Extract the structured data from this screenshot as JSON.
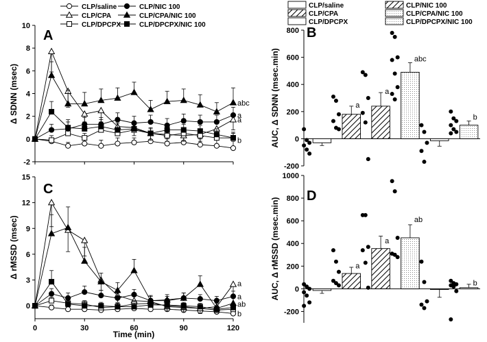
{
  "chart_data": [
    {
      "panel": "A",
      "type": "line",
      "title": "",
      "xlabel": "",
      "ylabel": "Δ SDNN (msec)",
      "xlim": [
        0,
        120
      ],
      "ylim": [
        -2,
        10
      ],
      "xticks": [
        0,
        30,
        60,
        90,
        120
      ],
      "yticks": [
        -2,
        0,
        2,
        4,
        6,
        8,
        10
      ],
      "x": [
        0,
        10,
        20,
        30,
        40,
        50,
        60,
        70,
        80,
        90,
        100,
        110,
        120
      ],
      "series": [
        {
          "name": "CLP/saline",
          "marker": "circle-open",
          "values": [
            0,
            -0.2,
            -0.6,
            -0.4,
            -0.6,
            -0.4,
            -0.3,
            -0.2,
            -0.4,
            -0.3,
            -0.5,
            -0.6,
            -0.8
          ],
          "err": [
            0,
            0.3,
            0.3,
            0.4,
            0.5,
            0.5,
            0.4,
            0.5,
            0.4,
            0.4,
            0.5,
            0.5,
            0.6
          ]
        },
        {
          "name": "CLP/CPA",
          "marker": "triangle-open",
          "values": [
            0,
            7.7,
            4.2,
            2.2,
            2.5,
            1.1,
            1.0,
            0.5,
            0.4,
            0.3,
            0.4,
            0.9,
            1.7
          ],
          "err": [
            0,
            1.8,
            1.4,
            0.9,
            1.0,
            0.8,
            0.7,
            0.6,
            0.6,
            0.5,
            0.6,
            0.7,
            0.9
          ]
        },
        {
          "name": "CLP/DPCPX",
          "marker": "square-open",
          "values": [
            0,
            -0.1,
            0.5,
            0.1,
            0.8,
            0.5,
            0.8,
            0.5,
            0.3,
            0.5,
            0.3,
            0.1,
            0.1
          ],
          "err": [
            0,
            0.4,
            0.5,
            0.4,
            0.5,
            0.5,
            0.5,
            0.4,
            0.4,
            0.5,
            0.4,
            0.4,
            0.4
          ]
        },
        {
          "name": "CLP/NIC 100",
          "marker": "circle-filled",
          "values": [
            0,
            0.8,
            0.9,
            1.3,
            1.3,
            1.7,
            1.4,
            1.5,
            1.2,
            1.6,
            1.5,
            1.5,
            2.1
          ],
          "err": [
            0,
            0.5,
            0.6,
            0.6,
            0.6,
            0.6,
            0.6,
            0.6,
            0.6,
            0.6,
            0.6,
            0.6,
            0.7
          ]
        },
        {
          "name": "CLP/CPA/NIC 100",
          "marker": "triangle-filled",
          "values": [
            0,
            5.6,
            3.1,
            3.1,
            3.4,
            3.6,
            4.1,
            2.6,
            3.3,
            3.4,
            3.0,
            2.4,
            3.2
          ],
          "err": [
            0,
            1.2,
            1.2,
            1.0,
            1.0,
            0.9,
            0.9,
            0.8,
            0.9,
            1.0,
            0.9,
            0.8,
            1.3
          ]
        },
        {
          "name": "CLP/DPCPX/NIC 100",
          "marker": "square-filled",
          "values": [
            0,
            2.4,
            1.0,
            0.9,
            1.1,
            0.8,
            0.9,
            0.5,
            0.8,
            0.8,
            0.7,
            0.4,
            0.1
          ],
          "err": [
            0,
            0.9,
            0.7,
            0.6,
            0.6,
            0.6,
            0.5,
            0.5,
            0.5,
            0.5,
            0.5,
            0.5,
            0.5
          ]
        }
      ],
      "annotations": [
        "abc",
        "a",
        "a",
        "b"
      ]
    },
    {
      "panel": "B",
      "type": "bar",
      "ylabel": "AUC, Δ SDNN (msec.min)",
      "ylim": [
        -200,
        800
      ],
      "yticks": [
        -200,
        0,
        200,
        400,
        600,
        800
      ],
      "categories": [
        "CLP/saline",
        "CLP/NIC 100",
        "CLP/CPA",
        "CLP/CPA/NIC 100",
        "CLP/DPCPX",
        "CLP/DPCPX/NIC 100"
      ],
      "values": [
        -30,
        180,
        240,
        490,
        -15,
        100
      ],
      "err": [
        20,
        60,
        100,
        70,
        40,
        30
      ],
      "points": [
        [
          70,
          -10,
          -30,
          -50,
          -80,
          -110
        ],
        [
          310,
          280,
          180,
          130,
          80,
          70
        ],
        [
          490,
          470,
          300,
          190,
          120,
          -150
        ],
        [
          780,
          750,
          600,
          580,
          480,
          380,
          330,
          290
        ],
        [
          100,
          50,
          -30,
          -90,
          -170
        ],
        [
          200,
          150,
          130,
          100,
          70,
          50,
          40
        ]
      ],
      "annotations": [
        "a",
        "a",
        "abc",
        "b"
      ]
    },
    {
      "panel": "C",
      "type": "line",
      "xlabel": "Time (min)",
      "ylabel": "Δ rMSSD (msec)",
      "xlim": [
        0,
        120
      ],
      "ylim": [
        -1.5,
        15
      ],
      "xticks": [
        0,
        30,
        60,
        90,
        120
      ],
      "yticks": [
        0,
        3,
        6,
        9,
        12,
        15
      ],
      "x": [
        0,
        10,
        20,
        30,
        40,
        50,
        60,
        70,
        80,
        90,
        100,
        110,
        120
      ],
      "series": [
        {
          "name": "CLP/saline",
          "marker": "circle-open",
          "values": [
            0,
            -0.2,
            -0.4,
            -0.4,
            -0.5,
            -0.4,
            -0.3,
            -0.4,
            -0.4,
            -0.5,
            -0.6,
            -0.7,
            -0.9
          ],
          "err": [
            0,
            0.3,
            0.3,
            0.3,
            0.3,
            0.3,
            0.3,
            0.3,
            0.3,
            0.3,
            0.3,
            0.3,
            0.4
          ]
        },
        {
          "name": "CLP/CPA",
          "marker": "triangle-open",
          "values": [
            0,
            12.0,
            8.8,
            7.6,
            3.0,
            1.2,
            0.6,
            0.5,
            -0.1,
            -0.2,
            -0.3,
            -0.1,
            2.5
          ],
          "err": [
            0,
            2.8,
            2.5,
            1.8,
            1.2,
            0.8,
            0.7,
            0.6,
            0.5,
            0.5,
            0.6,
            0.7,
            1.6
          ]
        },
        {
          "name": "CLP/DPCPX",
          "marker": "square-open",
          "values": [
            0,
            0.6,
            0.3,
            0.2,
            -0.2,
            -0.1,
            0.2,
            0.3,
            0.0,
            -0.1,
            -0.3,
            -0.5,
            -0.4
          ],
          "err": [
            0,
            0.4,
            0.4,
            0.4,
            0.4,
            0.4,
            0.4,
            0.4,
            0.4,
            0.4,
            0.4,
            0.4,
            0.4
          ]
        },
        {
          "name": "CLP/NIC 100",
          "marker": "circle-filled",
          "values": [
            0,
            1.4,
            0.9,
            1.6,
            1.2,
            0.9,
            1.3,
            0.6,
            0.6,
            0.9,
            0.8,
            0.6,
            1.1
          ],
          "err": [
            0,
            0.6,
            0.6,
            0.7,
            0.6,
            0.6,
            0.6,
            0.5,
            0.5,
            0.6,
            0.5,
            0.5,
            0.6
          ]
        },
        {
          "name": "CLP/CPA/NIC 100",
          "marker": "triangle-filled",
          "values": [
            0,
            8.4,
            9.1,
            5.2,
            2.8,
            1.8,
            4.1,
            0.6,
            0.7,
            0.9,
            2.5,
            -0.3,
            0.3
          ],
          "err": [
            0,
            2.2,
            2.4,
            1.6,
            1.0,
            0.9,
            1.3,
            0.6,
            0.6,
            0.6,
            1.0,
            0.6,
            0.9
          ]
        },
        {
          "name": "CLP/DPCPX/NIC 100",
          "marker": "square-filled",
          "values": [
            0,
            2.8,
            0.2,
            0.0,
            0.0,
            -0.1,
            -0.1,
            0.1,
            0.1,
            0.0,
            -0.1,
            -0.4,
            -0.2
          ],
          "err": [
            0,
            1.3,
            0.5,
            0.4,
            0.4,
            0.4,
            0.4,
            0.4,
            0.4,
            0.4,
            0.4,
            0.4,
            0.4
          ]
        }
      ],
      "annotations": [
        "a",
        "a",
        "ab",
        "b"
      ]
    },
    {
      "panel": "D",
      "type": "bar",
      "ylabel": "AUC, Δ rMSSD (msec.min)",
      "ylim": [
        -300,
        1000
      ],
      "yticks": [
        -200,
        0,
        200,
        400,
        600,
        800,
        1000
      ],
      "categories": [
        "CLP/saline",
        "CLP/NIC 100",
        "CLP/CPA",
        "CLP/CPA/NIC 100",
        "CLP/DPCPX",
        "CLP/DPCPX/NIC 100"
      ],
      "values": [
        -15,
        135,
        355,
        450,
        -5,
        10
      ],
      "err": [
        25,
        55,
        110,
        115,
        70,
        30
      ],
      "points": [
        [
          40,
          20,
          0,
          -30,
          -60,
          -120,
          -150
        ],
        [
          340,
          240,
          150,
          70,
          50,
          30
        ],
        [
          650,
          650,
          370,
          340,
          230,
          10
        ],
        [
          950,
          860,
          450,
          310,
          300,
          280
        ],
        [
          240,
          60,
          -110,
          -140,
          -170
        ],
        [
          70,
          50,
          40,
          30,
          20,
          -20,
          -270
        ]
      ],
      "annotations": [
        "a",
        "a",
        "ab",
        "b"
      ]
    }
  ],
  "labels": {
    "x_axis_title": "Time (min)",
    "legend_left": [
      "CLP/saline",
      "CLP/NIC 100",
      "CLP/CPA",
      "CLP/CPA/NIC 100",
      "CLP/DPCPX",
      "CLP/DPCPX/NIC 100"
    ],
    "legend_right": [
      "CLP/saline",
      "CLP/NIC 100",
      "CLP/CPA",
      "CLP/CPA/NIC 100",
      "CLP/DPCPX",
      "CLP/DPCPX/NIC 100"
    ]
  }
}
